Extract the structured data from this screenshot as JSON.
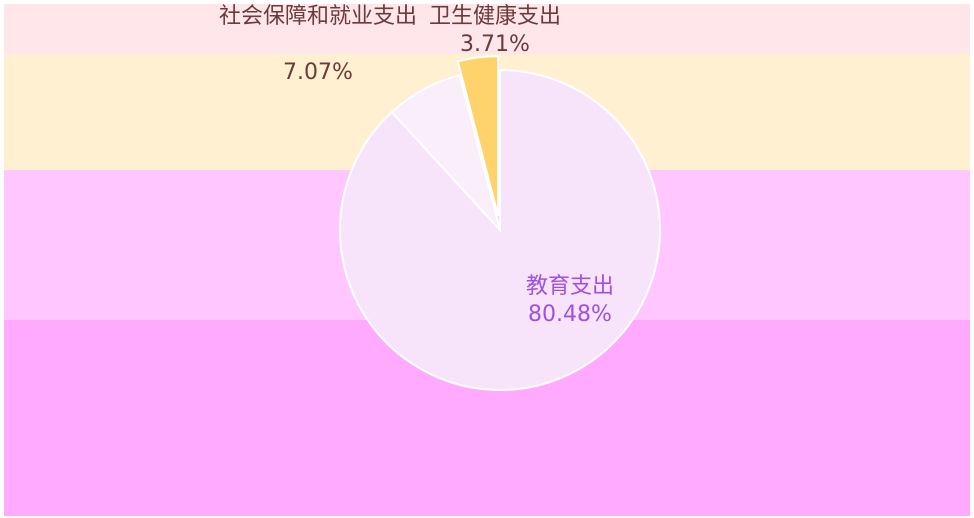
{
  "chart_data": {
    "type": "pie",
    "categories": [
      "教育支出",
      "社会保障和就业支出",
      "卫生健康支出"
    ],
    "values": [
      80.48,
      7.07,
      3.71
    ],
    "value_labels": [
      "80.48%",
      "7.07%",
      "3.71%"
    ],
    "colors": [
      "#f7e4fb",
      "#fbeefb",
      "#ffd36b"
    ],
    "explode": [
      false,
      false,
      true
    ]
  }
}
